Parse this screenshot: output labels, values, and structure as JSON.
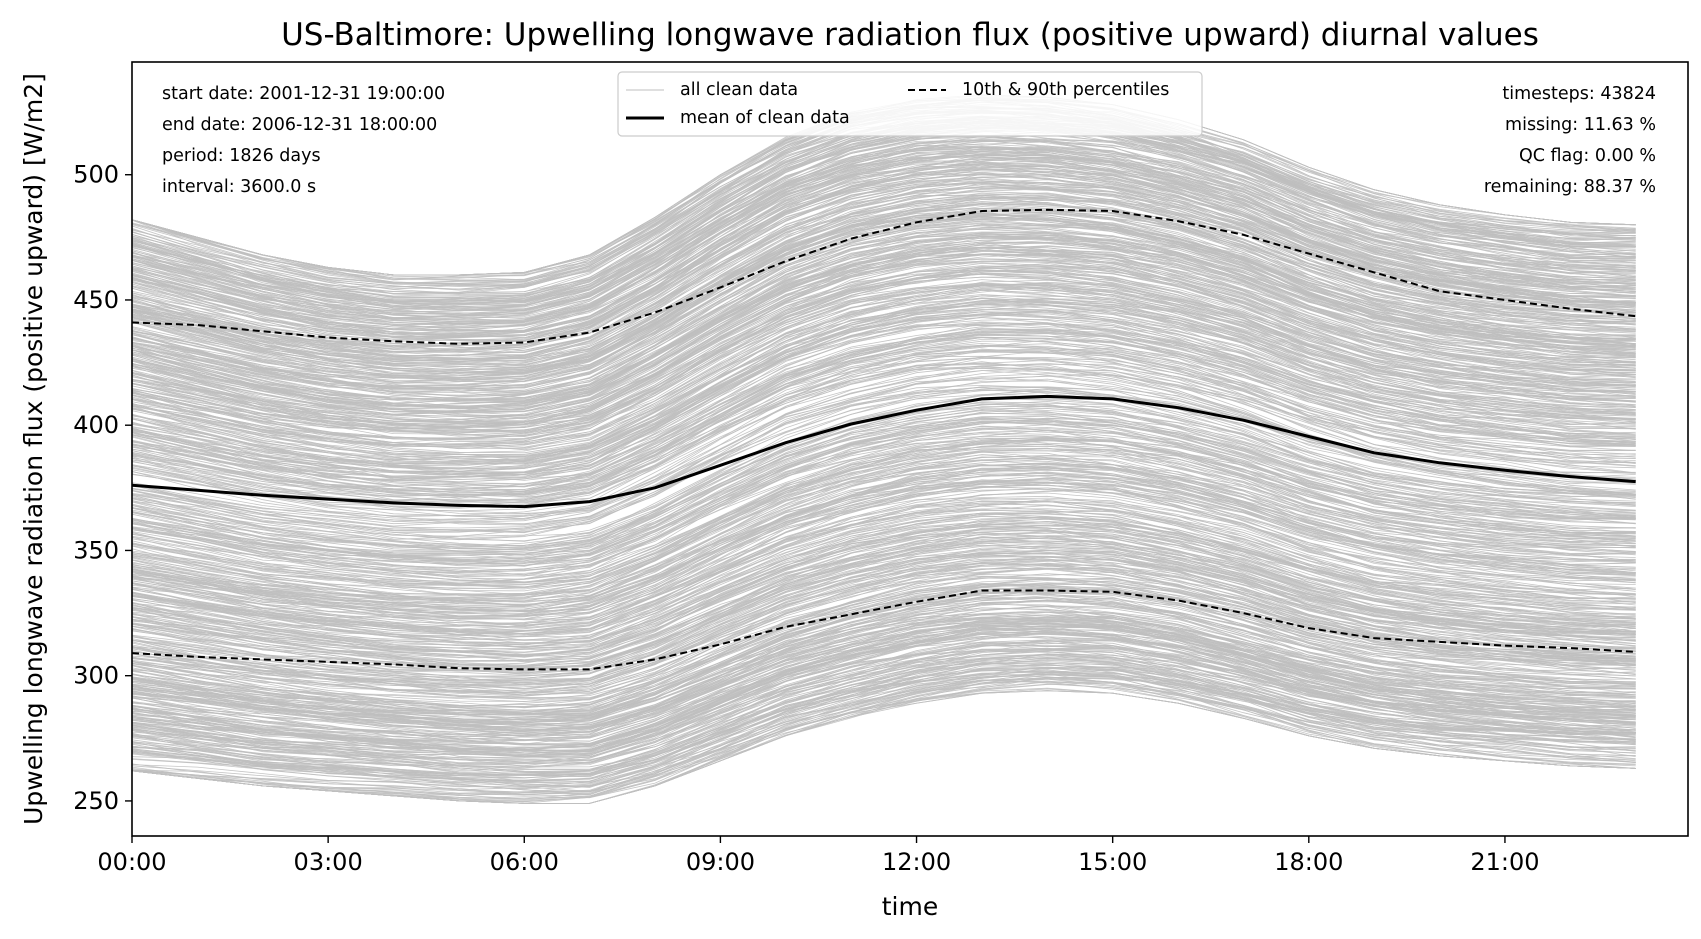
{
  "chart_data": {
    "type": "line",
    "title": "US-Baltimore: Upwelling longwave radiation flux (positive upward) diurnal values",
    "xlabel": "time",
    "ylabel": "Upwelling longwave radiation flux (positive upward) [W/m2]",
    "xlim": [
      0,
      23.8
    ],
    "ylim": [
      236,
      545
    ],
    "x_ticks": [
      0,
      3,
      6,
      9,
      12,
      15,
      18,
      21
    ],
    "x_tick_labels": [
      "00:00",
      "03:00",
      "06:00",
      "09:00",
      "12:00",
      "15:00",
      "18:00",
      "21:00"
    ],
    "y_ticks": [
      250,
      300,
      350,
      400,
      450,
      500
    ],
    "y_tick_labels": [
      "250",
      "300",
      "350",
      "400",
      "450",
      "500"
    ],
    "grid": false,
    "legend_position": "top-center",
    "legend": {
      "all_clean": "all clean data",
      "mean": "mean of clean data",
      "percentiles": "10th & 90th percentiles"
    },
    "x": [
      0,
      1,
      2,
      3,
      4,
      5,
      6,
      7,
      8,
      9,
      10,
      11,
      12,
      13,
      14,
      15,
      16,
      17,
      18,
      19,
      20,
      21,
      22,
      23
    ],
    "series": [
      {
        "key": "mean",
        "values": [
          376,
          374,
          372,
          370.5,
          369,
          368,
          367.5,
          369.5,
          375,
          384,
          393,
          400.5,
          406,
          410.5,
          411.5,
          410.5,
          407,
          402,
          395.5,
          389,
          385,
          382,
          379.5,
          377.5
        ]
      },
      {
        "key": "p90",
        "values": [
          441,
          440,
          437.5,
          435,
          433.5,
          432.5,
          433,
          437,
          445,
          455,
          465.5,
          474.5,
          481,
          485.5,
          486,
          485.5,
          481.5,
          476,
          468.5,
          461,
          453.5,
          450,
          446.5,
          443.5
        ]
      },
      {
        "key": "p10",
        "values": [
          309,
          307.5,
          306.5,
          305.5,
          304.5,
          303,
          302.5,
          302.5,
          306.5,
          312.5,
          319.5,
          324.5,
          329.5,
          334,
          334,
          333.5,
          330,
          325,
          319,
          315,
          313.5,
          312,
          311,
          309.5
        ]
      }
    ],
    "background_band": {
      "upper": [
        482,
        475,
        468,
        463,
        460,
        460,
        461,
        468,
        483,
        500,
        515,
        525,
        530,
        532,
        531,
        528,
        522,
        514,
        503,
        494,
        488,
        484,
        481,
        480
      ],
      "lower": [
        262,
        259,
        256,
        254,
        252,
        250,
        249,
        249,
        256,
        266,
        276,
        283,
        289,
        293,
        294,
        293,
        289,
        283,
        276,
        271,
        268,
        266,
        264,
        263
      ],
      "color": "#bfbfbf",
      "count": 1826
    },
    "annotations_left": [
      "start date: 2001-12-31 19:00:00",
      "end date: 2006-12-31 18:00:00",
      "period: 1826 days",
      "interval: 3600.0 s"
    ],
    "annotations_right": [
      "timesteps: 43824",
      "missing: 11.63 %",
      "QC flag: 0.00 %",
      "remaining: 88.37 %"
    ],
    "colors": {
      "clean": "#bfbfbf",
      "mean": "#000000",
      "percentiles": "#000000"
    }
  }
}
